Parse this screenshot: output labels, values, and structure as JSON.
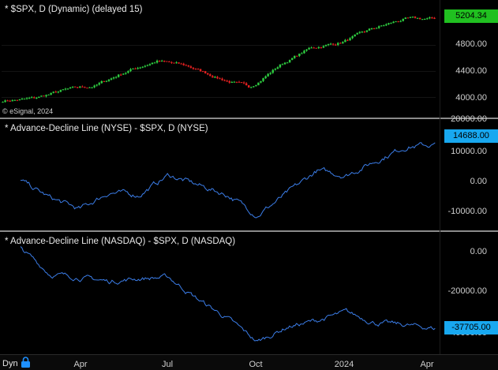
{
  "panes": [
    {
      "title": "* $SPX, D (Dynamic) (delayed 15)",
      "watermark": "© eSignal, 2024",
      "y_labels": [
        "4800.00",
        "4400.00",
        "4000.00"
      ],
      "last_value": "5204.34",
      "tag_color": "#20c020",
      "up_color": "#2ecc40",
      "down_color": "#e02020"
    },
    {
      "title": "* Advance-Decline Line (NYSE) - $SPX, D (NYSE)",
      "y_labels": [
        "20000.00",
        "10000.00",
        "0.00",
        "-10000.00"
      ],
      "last_value": "14688.00",
      "tag_color": "#18a8f0",
      "line_color": "#3b7de8"
    },
    {
      "title": "* Advance-Decline Line (NASDAQ) - $SPX, D (NASDAQ)",
      "y_labels": [
        "0.00",
        "-20000.00",
        "-40000.00"
      ],
      "last_value": "-37705.00",
      "tag_color": "#18a8f0",
      "line_color": "#3b7de8"
    }
  ],
  "x_axis": {
    "labels": [
      "Apr",
      "Jul",
      "Oct",
      "2024",
      "Apr"
    ]
  },
  "footer": {
    "mode_label": "Dyn",
    "lock_icon": "padlock-icon"
  },
  "chart_data": [
    {
      "type": "candlestick",
      "title": "* $SPX, D (Dynamic) (delayed 15)",
      "x": [
        "2023-02",
        "2023-03",
        "2023-04",
        "2023-05",
        "2023-06",
        "2023-07",
        "2023-08",
        "2023-09",
        "2023-10",
        "2023-11",
        "2023-12",
        "2024-01",
        "2024-02",
        "2024-03",
        "2024-04"
      ],
      "values": [
        3950,
        3980,
        4110,
        4180,
        4400,
        4560,
        4480,
        4300,
        4150,
        4500,
        4760,
        4850,
        5050,
        5200,
        5204.34
      ],
      "ylim": [
        3800,
        5400
      ]
    },
    {
      "type": "line",
      "title": "* Advance-Decline Line (NYSE) - $SPX, D (NYSE)",
      "x": [
        "2023-02",
        "2023-03",
        "2023-04",
        "2023-05",
        "2023-06",
        "2023-07",
        "2023-08",
        "2023-09",
        "2023-10",
        "2023-11",
        "2023-12",
        "2024-01",
        "2024-02",
        "2024-03",
        "2024-04"
      ],
      "values": [
        2000,
        -4000,
        -8000,
        -2000,
        -3000,
        4000,
        500,
        -3000,
        -10000,
        -2500,
        5500,
        4000,
        9000,
        14000,
        14688
      ],
      "ylim": [
        -14000,
        22000
      ]
    },
    {
      "type": "line",
      "title": "* Advance-Decline Line (NASDAQ) - $SPX, D (NASDAQ)",
      "x": [
        "2023-02",
        "2023-03",
        "2023-04",
        "2023-05",
        "2023-06",
        "2023-07",
        "2023-08",
        "2023-09",
        "2023-10",
        "2023-11",
        "2023-12",
        "2024-01",
        "2024-02",
        "2024-03",
        "2024-04"
      ],
      "values": [
        500,
        -12000,
        -13500,
        -15500,
        -14000,
        -13500,
        -24000,
        -33000,
        -44000,
        -37000,
        -34000,
        -30000,
        -35000,
        -36000,
        -37705
      ],
      "ylim": [
        -48000,
        5000
      ]
    }
  ]
}
